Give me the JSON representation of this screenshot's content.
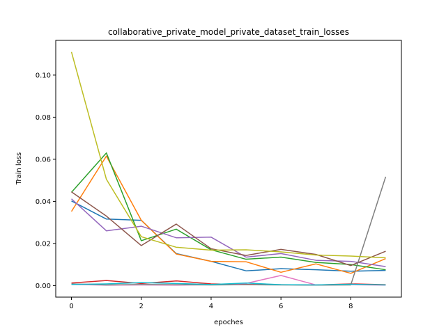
{
  "chart_data": {
    "type": "line",
    "title": "collaborative_private_model_private_dataset_train_losses",
    "xlabel": "epoches",
    "ylabel": "Train loss",
    "xlim": [
      -0.45,
      9.45
    ],
    "ylim": [
      -0.0055,
      0.1165
    ],
    "xticks": [
      0,
      2,
      4,
      6,
      8
    ],
    "yticks": [
      0.0,
      0.02,
      0.04,
      0.06,
      0.08,
      0.1
    ],
    "ytick_labels": [
      "0.00",
      "0.02",
      "0.04",
      "0.06",
      "0.08",
      "0.10"
    ],
    "grid": false,
    "x": [
      0,
      1,
      2,
      3,
      4,
      5,
      6,
      7,
      8,
      9
    ],
    "series": [
      {
        "color": "#1f77b4",
        "values": [
          0.0402,
          0.0316,
          0.031,
          0.0152,
          0.0115,
          0.007,
          0.008,
          0.0075,
          0.0068,
          0.0072
        ]
      },
      {
        "color": "#ff7f0e",
        "values": [
          0.0352,
          0.0615,
          0.031,
          0.015,
          0.0115,
          0.0113,
          0.0063,
          0.0103,
          0.0058,
          0.0128
        ]
      },
      {
        "color": "#2ca02c",
        "values": [
          0.0443,
          0.063,
          0.0213,
          0.0268,
          0.017,
          0.0125,
          0.0135,
          0.011,
          0.01,
          0.0075
        ]
      },
      {
        "color": "#d62728",
        "values": [
          0.0012,
          0.0024,
          0.001,
          0.0022,
          0.0008,
          0.0005,
          0.0004,
          0.0003,
          0.0008,
          0.0004
        ]
      },
      {
        "color": "#9467bd",
        "values": [
          0.0412,
          0.026,
          0.0282,
          0.0227,
          0.023,
          0.0135,
          0.0152,
          0.012,
          0.0115,
          0.009
        ]
      },
      {
        "color": "#8c564b",
        "values": [
          0.0445,
          0.033,
          0.019,
          0.0292,
          0.0175,
          0.0143,
          0.0172,
          0.0148,
          0.0095,
          0.0163
        ]
      },
      {
        "color": "#e377c2",
        "values": [
          0.0005,
          0.0002,
          0.0003,
          0.0002,
          0.0004,
          0.001,
          0.0048,
          0.0003,
          0.0004,
          0.0002
        ]
      },
      {
        "color": "#7f7f7f",
        "values": [
          0.0008,
          0.0003,
          0.0005,
          0.0004,
          0.0003,
          0.0004,
          0.0003,
          0.0002,
          0.0003,
          0.0517
        ]
      },
      {
        "color": "#bcbd22",
        "values": [
          0.111,
          0.0505,
          0.0232,
          0.0182,
          0.0168,
          0.017,
          0.016,
          0.0145,
          0.014,
          0.0132
        ]
      },
      {
        "color": "#17becf",
        "values": [
          0.0005,
          0.0008,
          0.0014,
          0.001,
          0.0005,
          0.0012,
          0.0004,
          0.0003,
          0.0006,
          0.0003
        ]
      }
    ]
  }
}
